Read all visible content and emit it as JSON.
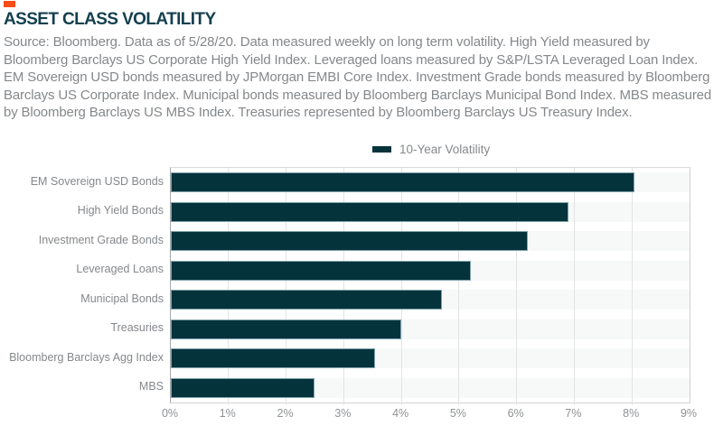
{
  "theme": {
    "accent_orange": "#f84c16",
    "title_teal": "#14404f",
    "body_gray": "#85888b",
    "axis_label_gray": "#8f9294",
    "bar_fill": "#05333c",
    "bar_stroke": "#7fa2aa",
    "row_band": "#f7f8f8",
    "gridline": "#e2e4e4",
    "axis_line": "#a6a9ab",
    "plot_border": "#d9dcdd"
  },
  "header": {
    "title": "ASSET CLASS VOLATILITY",
    "source_lines": [
      "Source: Bloomberg. Data as of 5/28/20. Data measured weekly on long term volatility. High Yield measured by",
      "Bloomberg Barclays US Corporate High Yield Index. Leveraged loans measured by S&P/LSTA Leveraged Loan Index.",
      "EM Sovereign USD bonds measured by JPMorgan EMBI Core Index. Investment Grade bonds measured by Bloomberg",
      "Barclays US Corporate Index. Municipal bonds measured by Bloomberg Barclays Municipal Bond Index. MBS measured",
      "by Bloomberg Barclays US MBS Index. Treasuries represented by Bloomberg Barclays US Treasury Index."
    ]
  },
  "legend": {
    "label": "10-Year Volatility"
  },
  "chart_data": {
    "type": "bar",
    "orientation": "horizontal",
    "title": "ASSET CLASS VOLATILITY",
    "series_name": "10-Year Volatility",
    "categories": [
      "EM Sovereign USD Bonds",
      "High Yield Bonds",
      "Investment Grade Bonds",
      "Leveraged Loans",
      "Municipal Bonds",
      "Treasuries",
      "Bloomberg Barclays Agg Index",
      "MBS"
    ],
    "values": [
      8.05,
      6.9,
      6.2,
      5.2,
      4.7,
      4.0,
      3.55,
      2.5
    ],
    "value_unit": "%",
    "xlabel": "",
    "ylabel": "",
    "xlim": [
      0,
      9
    ],
    "x_ticks": [
      "0%",
      "1%",
      "2%",
      "3%",
      "4%",
      "5%",
      "6%",
      "7%",
      "8%",
      "9%"
    ],
    "grid": "vertical",
    "legend_position": "top-center"
  }
}
